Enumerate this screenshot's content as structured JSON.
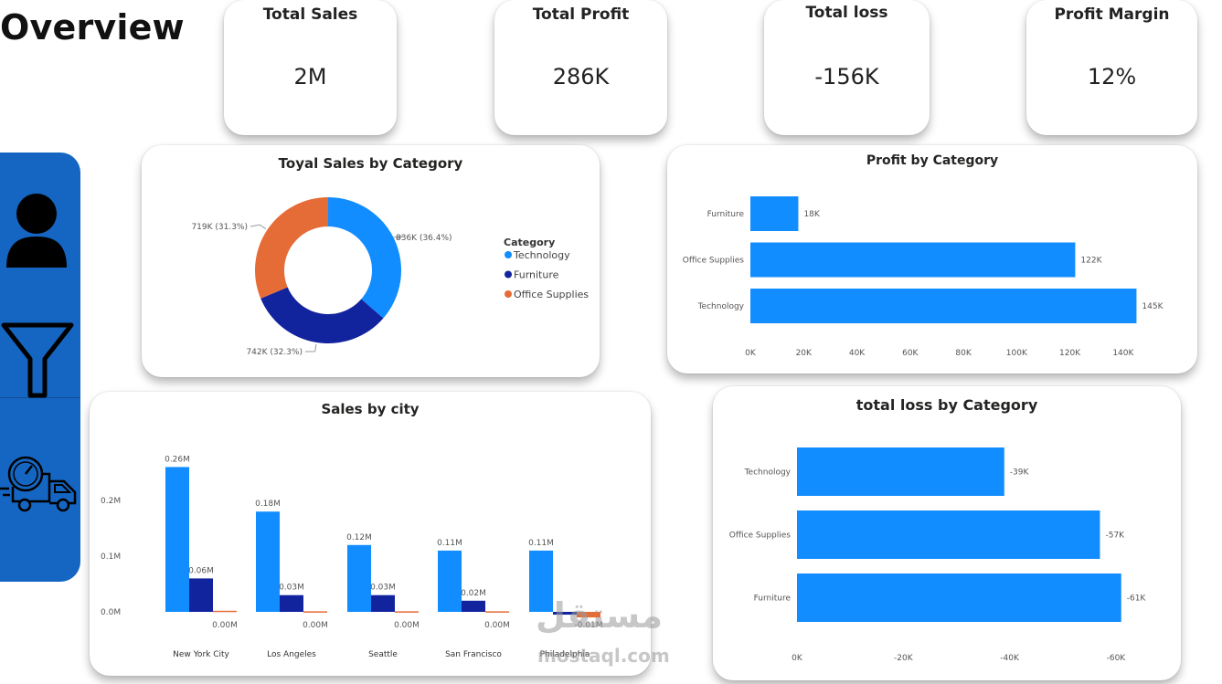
{
  "page": {
    "title": "Overview"
  },
  "kpis": [
    {
      "label": "Total Sales",
      "value": "2M"
    },
    {
      "label": "Total Profit",
      "value": "286K"
    },
    {
      "label": "Total loss",
      "value": "-156K"
    },
    {
      "label": "Profit Margin",
      "value": "12%"
    }
  ],
  "sidebar": {
    "color": "#1566c2",
    "items": [
      {
        "icon": "user-icon"
      },
      {
        "icon": "filter-icon"
      },
      {
        "icon": "delivery-truck-icon"
      }
    ]
  },
  "watermark": {
    "text_top": "مستقل",
    "text_bottom": "mostaql.com"
  },
  "chart_data": [
    {
      "type": "pie",
      "title": "Toyal Sales by Category",
      "legend_title": "Category",
      "legend_position": "right",
      "donut": true,
      "slices": [
        {
          "name": "Technology",
          "value": 836,
          "label": "836K (36.4%)",
          "color": "#118dff"
        },
        {
          "name": "Furniture",
          "value": 742,
          "label": "742K (32.3%)",
          "color": "#12239e"
        },
        {
          "name": "Office Supplies",
          "value": 719,
          "label": "719K (31.3%)",
          "color": "#e66c37"
        }
      ]
    },
    {
      "type": "bar",
      "orientation": "horizontal",
      "title": "Profit by Category",
      "categories": [
        "Furniture",
        "Office Supplies",
        "Technology"
      ],
      "values": [
        18,
        122,
        145
      ],
      "data_labels": [
        "18K",
        "122K",
        "145K"
      ],
      "xlim": [
        0,
        150
      ],
      "xticks": [
        0,
        20,
        40,
        60,
        80,
        100,
        120,
        140
      ],
      "xtick_labels": [
        "0K",
        "20K",
        "40K",
        "60K",
        "80K",
        "100K",
        "120K",
        "140K"
      ],
      "color": "#118dff"
    },
    {
      "type": "bar",
      "title": "Sales by city",
      "categories": [
        "New York City",
        "Los Angeles",
        "Seattle",
        "San Francisco",
        "Philadelphia"
      ],
      "series": [
        {
          "values": [
            0.26,
            0.18,
            0.12,
            0.11,
            0.11
          ],
          "labels": [
            "0.26M",
            "0.18M",
            "0.12M",
            "0.11M",
            "0.11M"
          ],
          "color": "#118dff"
        },
        {
          "values": [
            0.06,
            0.03,
            0.03,
            0.02,
            -0.005
          ],
          "labels": [
            "0.06M",
            "0.03M",
            "0.03M",
            "0.02M",
            ""
          ],
          "color": "#12239e"
        },
        {
          "values": [
            0.002,
            0.001,
            0.001,
            0.001,
            -0.01
          ],
          "labels": [
            "0.00M",
            "0.00M",
            "0.00M",
            "0.00M",
            "-0.01M"
          ],
          "color": "#e66c37"
        }
      ],
      "ylim": [
        -0.02,
        0.27
      ],
      "yticks": [
        0,
        0.1,
        0.2
      ],
      "ytick_labels": [
        "0.0M",
        "0.1M",
        "0.2M"
      ]
    },
    {
      "type": "bar",
      "orientation": "horizontal",
      "title": "total loss by Category",
      "categories": [
        "Technology",
        "Office Supplies",
        "Furniture"
      ],
      "values": [
        -39,
        -57,
        -61
      ],
      "data_labels": [
        "-39K",
        "-57K",
        "-61K"
      ],
      "xlim": [
        0,
        -65
      ],
      "xticks": [
        0,
        -20,
        -40,
        -60
      ],
      "xtick_labels": [
        "0K",
        "-20K",
        "-40K",
        "-60K"
      ],
      "color": "#118dff"
    }
  ]
}
